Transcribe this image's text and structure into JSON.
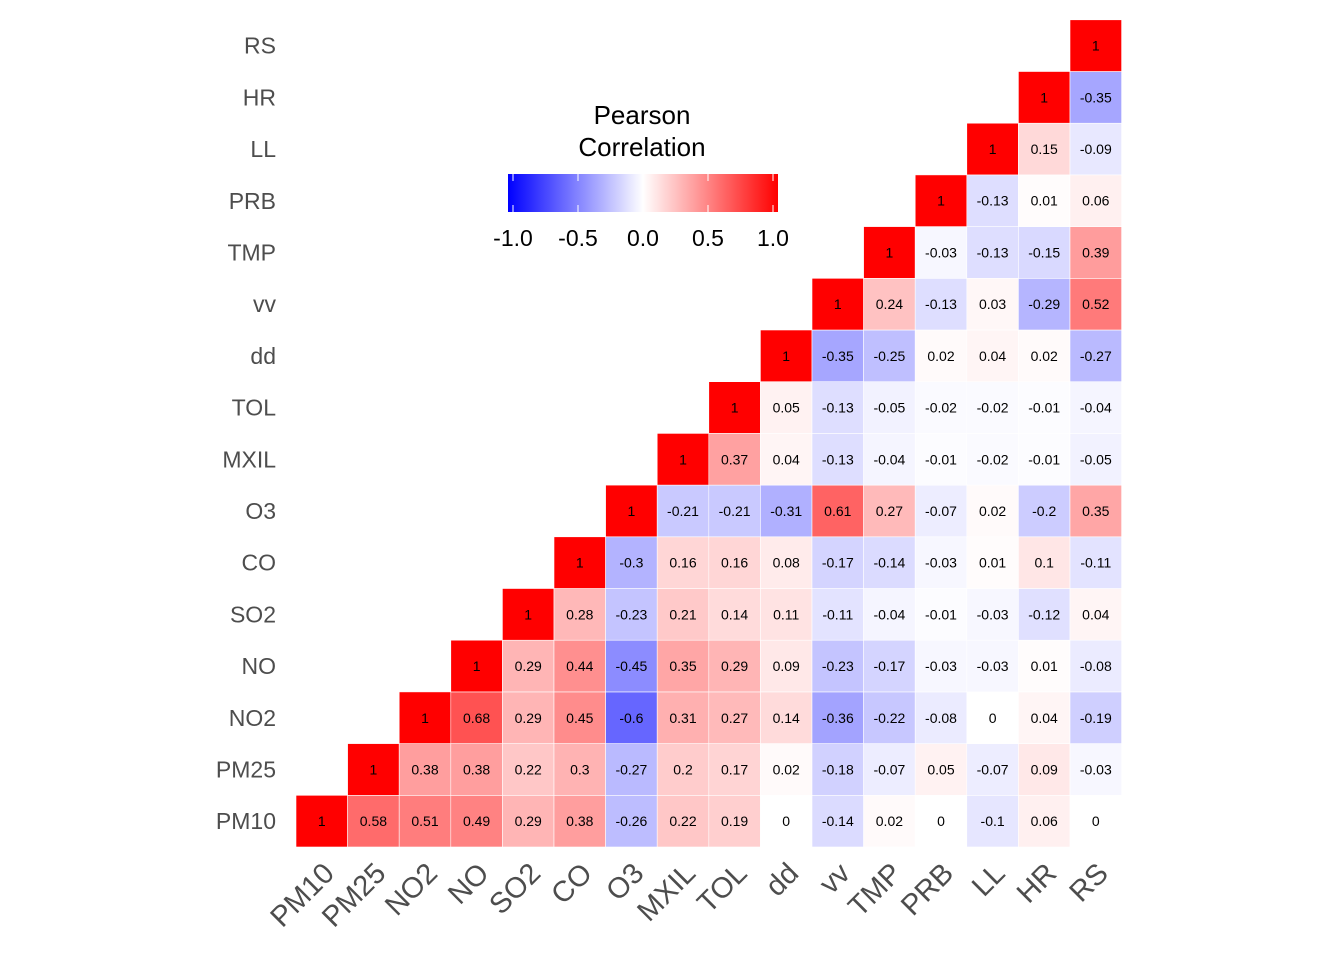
{
  "chart_data": {
    "type": "heatmap",
    "variables": [
      "PM10",
      "PM25",
      "NO2",
      "NO",
      "SO2",
      "CO",
      "O3",
      "MXIL",
      "TOL",
      "dd",
      "vv",
      "TMP",
      "PRB",
      "LL",
      "HR",
      "RS"
    ],
    "matrix_lower": [
      [
        1
      ],
      [
        0.58,
        1
      ],
      [
        0.51,
        0.38,
        1
      ],
      [
        0.49,
        0.38,
        0.68,
        1
      ],
      [
        0.29,
        0.22,
        0.29,
        0.29,
        1
      ],
      [
        0.38,
        0.3,
        0.45,
        0.44,
        0.28,
        1
      ],
      [
        -0.26,
        -0.27,
        -0.6,
        -0.45,
        -0.23,
        -0.3,
        1
      ],
      [
        0.22,
        0.2,
        0.31,
        0.35,
        0.21,
        0.16,
        -0.21,
        1
      ],
      [
        0.19,
        0.17,
        0.27,
        0.29,
        0.14,
        0.16,
        -0.21,
        0.37,
        1
      ],
      [
        0,
        0.02,
        0.14,
        0.09,
        0.11,
        0.08,
        -0.31,
        0.04,
        0.05,
        1
      ],
      [
        -0.14,
        -0.18,
        -0.36,
        -0.23,
        -0.11,
        -0.17,
        0.61,
        -0.13,
        -0.13,
        -0.35,
        1
      ],
      [
        0.02,
        -0.07,
        -0.22,
        -0.17,
        -0.04,
        -0.14,
        0.27,
        -0.04,
        -0.05,
        -0.25,
        0.24,
        1
      ],
      [
        0,
        0.05,
        -0.08,
        -0.03,
        -0.01,
        -0.03,
        -0.07,
        -0.01,
        -0.02,
        0.02,
        -0.13,
        -0.03,
        1
      ],
      [
        -0.1,
        -0.07,
        0,
        -0.03,
        -0.03,
        0.01,
        0.02,
        -0.02,
        -0.02,
        0.04,
        0.03,
        -0.13,
        -0.13,
        1
      ],
      [
        0.06,
        0.09,
        0.04,
        0.01,
        -0.12,
        0.1,
        -0.2,
        -0.01,
        -0.01,
        0.02,
        -0.29,
        -0.15,
        0.01,
        0.15,
        1
      ],
      [
        0,
        -0.03,
        -0.19,
        -0.08,
        0.04,
        -0.11,
        0.35,
        -0.05,
        -0.04,
        -0.27,
        0.52,
        0.39,
        0.06,
        -0.09,
        -0.35,
        1
      ]
    ],
    "legend": {
      "title_line1": "Pearson",
      "title_line2": "Correlation",
      "ticks": [
        "-1.0",
        "-0.5",
        "0.0",
        "0.5",
        "1.0"
      ],
      "tick_values": [
        -1,
        -0.5,
        0,
        0.5,
        1
      ],
      "range": [
        -1,
        1
      ],
      "colors": {
        "low": "#0000ff",
        "mid": "#ffffff",
        "high": "#ff0000"
      },
      "position": "top-center"
    },
    "title": "",
    "xlabel": "",
    "ylabel": ""
  }
}
